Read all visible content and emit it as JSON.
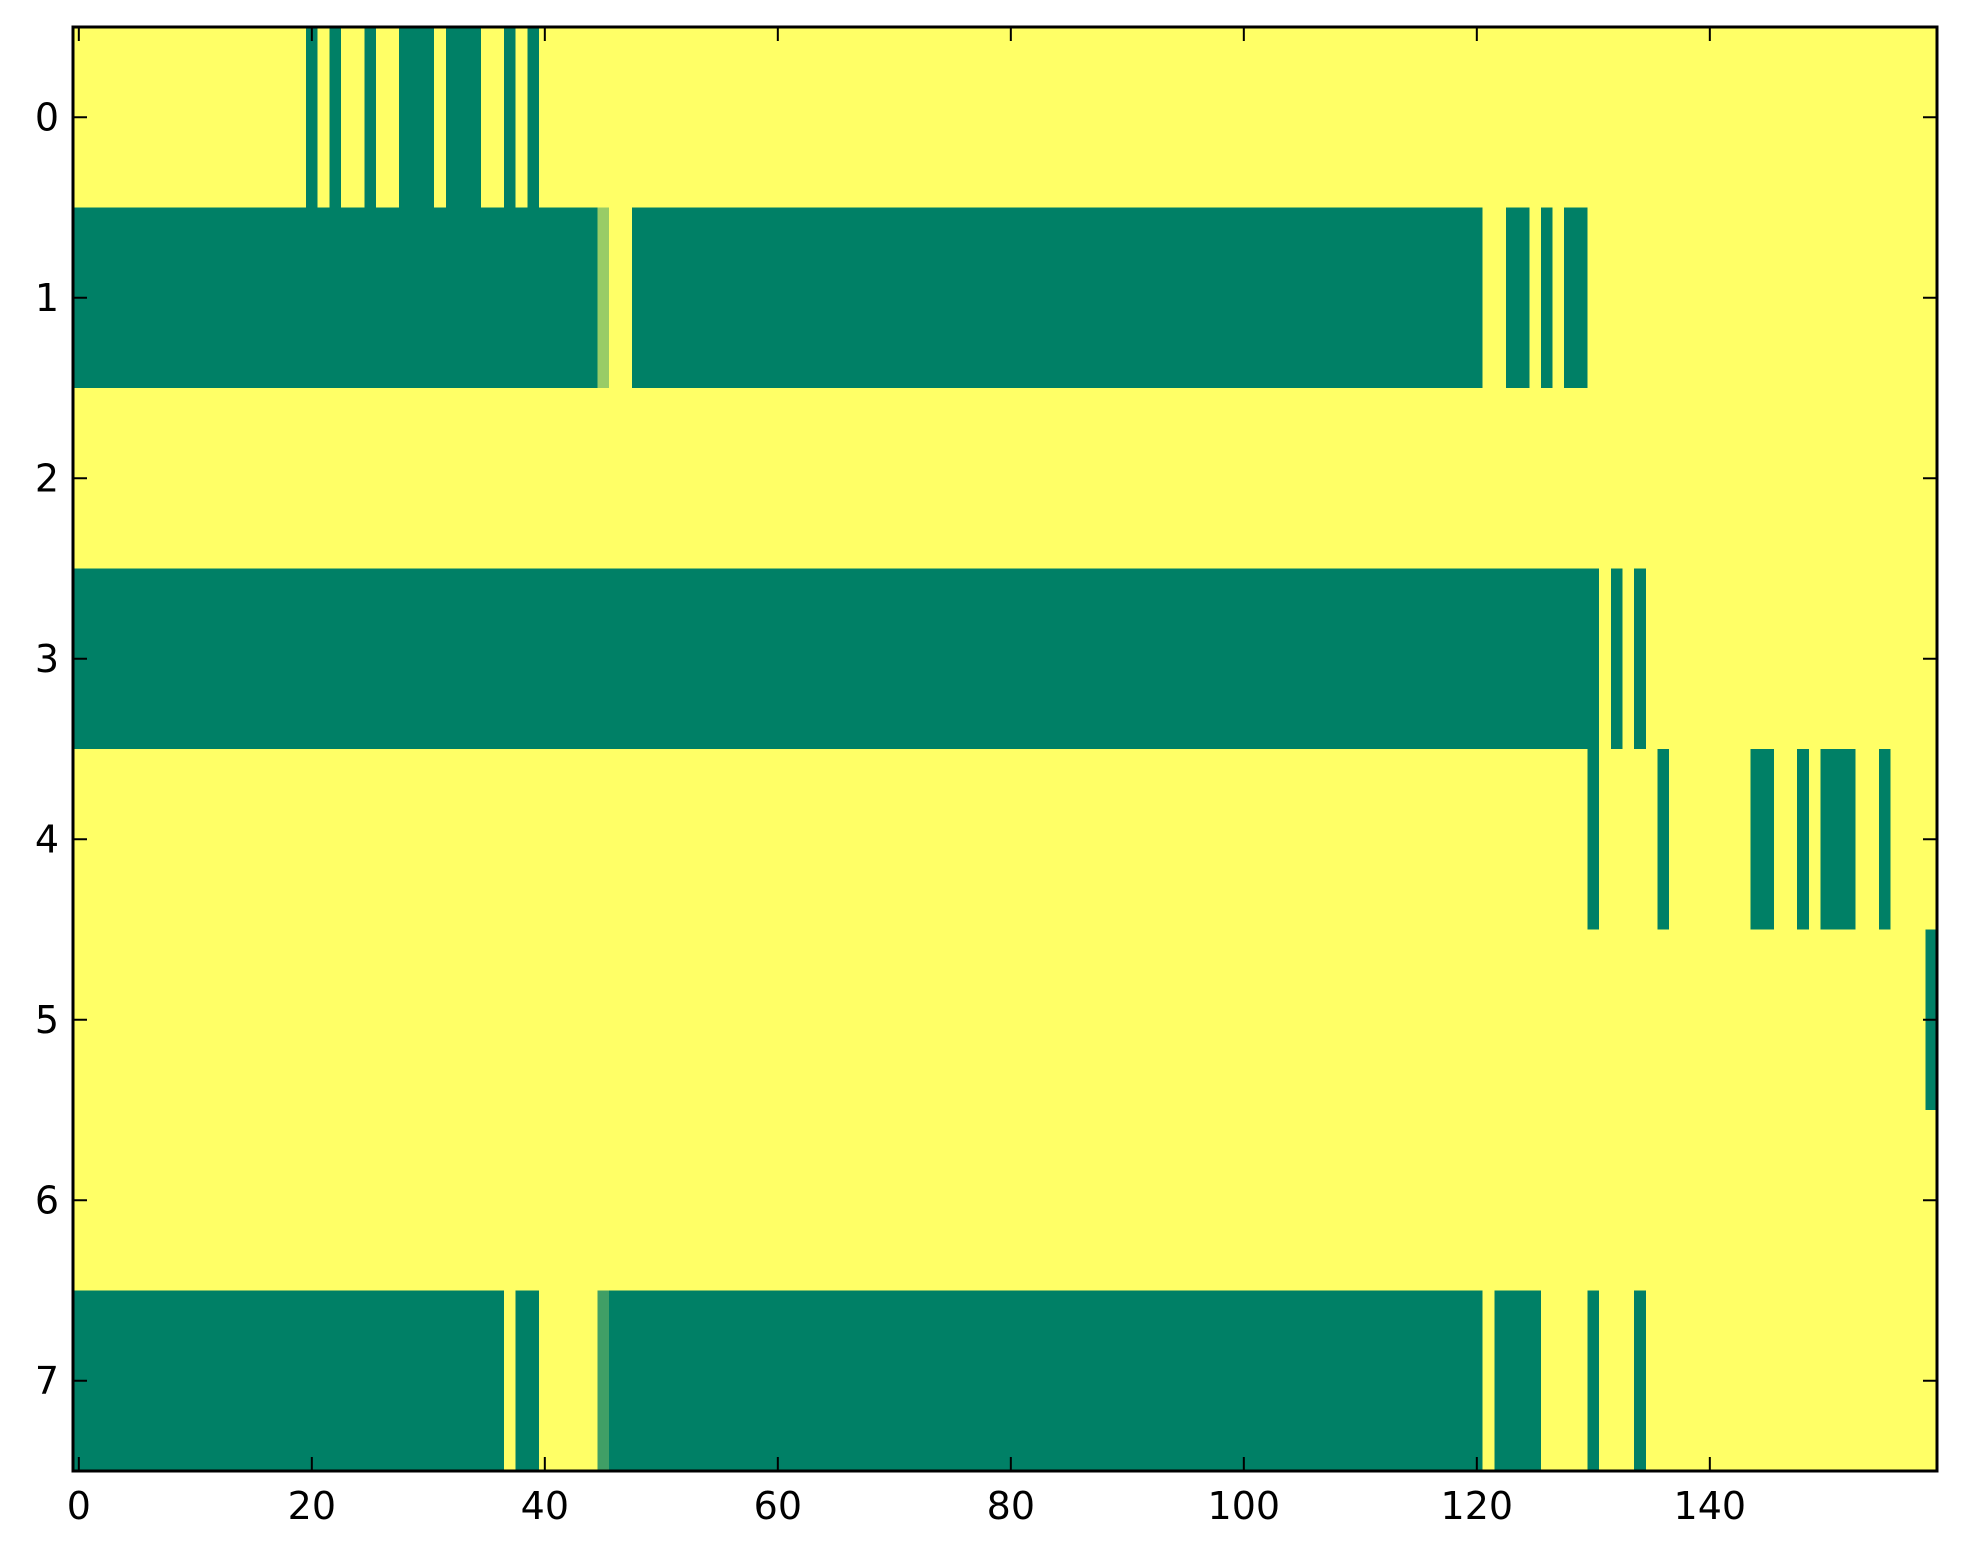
{
  "chart_data": {
    "type": "heatmap",
    "title": "",
    "xlabel": "",
    "ylabel": "",
    "xlim": [
      -0.5,
      159.5
    ],
    "ylim": [
      7.5,
      -0.5
    ],
    "grid": false,
    "legend": "none",
    "colormap": "summer",
    "value_range": [
      0,
      1
    ],
    "rows": 8,
    "cols": 160,
    "background_value": 1,
    "x_ticks": [
      0,
      20,
      40,
      60,
      80,
      100,
      120,
      140
    ],
    "x_tick_labels": [
      "0",
      "20",
      "40",
      "60",
      "80",
      "100",
      "120",
      "140"
    ],
    "y_ticks": [
      0,
      1,
      2,
      3,
      4,
      5,
      6,
      7
    ],
    "y_tick_labels": [
      "0",
      "1",
      "2",
      "3",
      "4",
      "5",
      "6",
      "7"
    ],
    "segments": [
      {
        "row": 0,
        "start": 20,
        "end": 20,
        "value": 0
      },
      {
        "row": 0,
        "start": 22,
        "end": 22,
        "value": 0
      },
      {
        "row": 0,
        "start": 25,
        "end": 25,
        "value": 0
      },
      {
        "row": 0,
        "start": 28,
        "end": 30,
        "value": 0
      },
      {
        "row": 0,
        "start": 32,
        "end": 34,
        "value": 0
      },
      {
        "row": 0,
        "start": 37,
        "end": 37,
        "value": 0
      },
      {
        "row": 0,
        "start": 39,
        "end": 39,
        "value": 0
      },
      {
        "row": 1,
        "start": 0,
        "end": 44,
        "value": 0
      },
      {
        "row": 1,
        "start": 45,
        "end": 45,
        "value": 0.6
      },
      {
        "row": 1,
        "start": 48,
        "end": 120,
        "value": 0
      },
      {
        "row": 1,
        "start": 123,
        "end": 124,
        "value": 0
      },
      {
        "row": 1,
        "start": 126,
        "end": 126,
        "value": 0
      },
      {
        "row": 1,
        "start": 128,
        "end": 129,
        "value": 0
      },
      {
        "row": 3,
        "start": 0,
        "end": 130,
        "value": 0
      },
      {
        "row": 3,
        "start": 132,
        "end": 132,
        "value": 0
      },
      {
        "row": 3,
        "start": 134,
        "end": 134,
        "value": 0
      },
      {
        "row": 4,
        "start": 130,
        "end": 130,
        "value": 0
      },
      {
        "row": 4,
        "start": 136,
        "end": 136,
        "value": 0
      },
      {
        "row": 4,
        "start": 144,
        "end": 145,
        "value": 0
      },
      {
        "row": 4,
        "start": 148,
        "end": 148,
        "value": 0
      },
      {
        "row": 4,
        "start": 150,
        "end": 152,
        "value": 0
      },
      {
        "row": 4,
        "start": 155,
        "end": 155,
        "value": 0
      },
      {
        "row": 5,
        "start": 159,
        "end": 159,
        "value": 0
      },
      {
        "row": 7,
        "start": 0,
        "end": 36,
        "value": 0
      },
      {
        "row": 7,
        "start": 38,
        "end": 39,
        "value": 0
      },
      {
        "row": 7,
        "start": 45,
        "end": 45,
        "value": 0.25
      },
      {
        "row": 7,
        "start": 46,
        "end": 120,
        "value": 0
      },
      {
        "row": 7,
        "start": 122,
        "end": 125,
        "value": 0
      },
      {
        "row": 7,
        "start": 130,
        "end": 130,
        "value": 0
      },
      {
        "row": 7,
        "start": 134,
        "end": 134,
        "value": 0
      }
    ]
  }
}
